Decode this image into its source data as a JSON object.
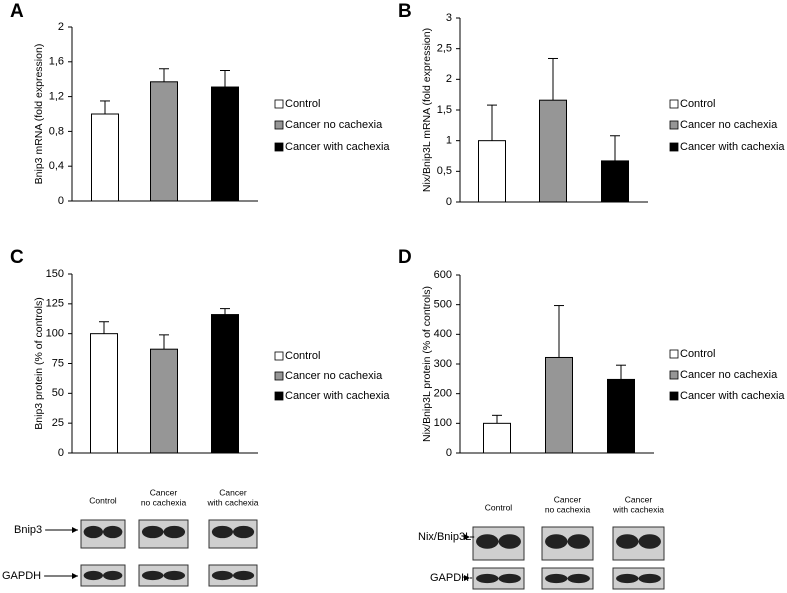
{
  "chart_data": [
    {
      "type": "bar",
      "label": "A",
      "y_label": "Bnip3 mRNA (fold expression)",
      "categories": [
        "Control",
        "Cancer no cachexia",
        "Cancer with cachexia"
      ],
      "colors": [
        "#ffffff",
        "#969696",
        "#000000"
      ],
      "values": [
        1.0,
        1.37,
        1.31
      ],
      "errors": [
        0.15,
        0.15,
        0.19
      ],
      "ylim": [
        0,
        2
      ],
      "yticks": [
        0,
        {
          "value": 0.4,
          "label": "0,4"
        },
        {
          "value": 0.8,
          "label": "0,8"
        },
        {
          "value": 1.2,
          "label": "1,2"
        },
        {
          "value": 1.6,
          "label": "1,6"
        },
        2
      ]
    },
    {
      "type": "bar",
      "label": "B",
      "y_label": "Nix/Bnip3L mRNA (fold expression)",
      "categories": [
        "Control",
        "Cancer no cachexia",
        "Cancer with cachexia"
      ],
      "colors": [
        "#ffffff",
        "#969696",
        "#000000"
      ],
      "values": [
        1.0,
        1.66,
        0.67
      ],
      "errors": [
        0.58,
        0.68,
        0.41
      ],
      "ylim": [
        0,
        3
      ],
      "yticks": [
        0,
        {
          "value": 0.5,
          "label": "0,5"
        },
        1,
        {
          "value": 1.5,
          "label": "1,5"
        },
        2,
        {
          "value": 2.5,
          "label": "2,5"
        },
        3
      ]
    },
    {
      "type": "bar",
      "label": "C",
      "y_label": "Bnip3 protein (% of controls)",
      "categories": [
        "Control",
        "Cancer no cachexia",
        "Cancer with cachexia"
      ],
      "colors": [
        "#ffffff",
        "#969696",
        "#000000"
      ],
      "values": [
        100,
        87,
        116
      ],
      "errors": [
        10,
        12,
        5
      ],
      "ylim": [
        0,
        150
      ],
      "yticks": [
        0,
        25,
        50,
        75,
        100,
        125,
        150
      ]
    },
    {
      "type": "bar",
      "label": "D",
      "y_label": "Nix/Bnip3L protein (% of controls)",
      "categories": [
        "Control",
        "Cancer no cachexia",
        "Cancer with cachexia"
      ],
      "colors": [
        "#ffffff",
        "#969696",
        "#000000"
      ],
      "values": [
        100,
        322,
        248
      ],
      "errors": [
        27,
        175,
        48
      ],
      "ylim": [
        0,
        600
      ],
      "yticks": [
        0,
        100,
        200,
        300,
        400,
        500,
        600
      ]
    }
  ],
  "blots": [
    {
      "lanes": [
        [
          "Control"
        ],
        [
          "Cancer",
          "no cachexia"
        ],
        [
          "Cancer",
          "with cachexia"
        ]
      ],
      "rows": [
        "Bnip3",
        "GAPDH"
      ]
    },
    {
      "lanes": [
        [
          "Control"
        ],
        [
          "Cancer",
          "no cachexia"
        ],
        [
          "Cancer",
          "with cachexia"
        ]
      ],
      "rows": [
        "Nix/Bnip3L",
        "GAPDH"
      ]
    }
  ]
}
